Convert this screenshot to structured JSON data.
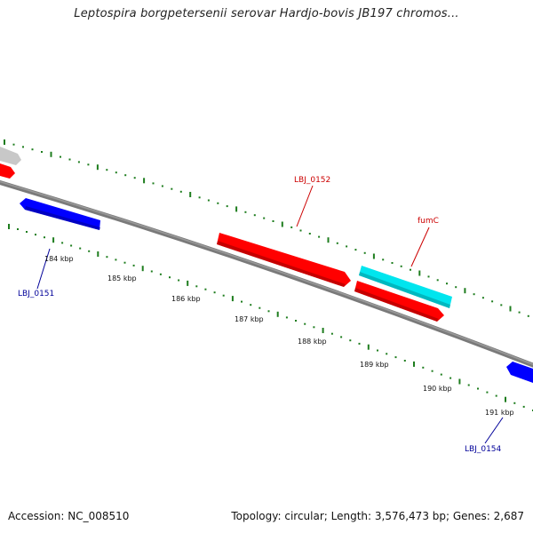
{
  "title": "Leptospira borgpetersenii serovar Hardjo-bovis JB197 chromos...",
  "footer": {
    "accession": "Accession: NC_008510",
    "summary": "Topology: circular; Length: 3,576,473 bp; Genes: 2,687"
  },
  "colors": {
    "backbone": "#7a7a7a",
    "tick": "#1e7d1e",
    "forward_gene": "#ff0000",
    "reverse_gene": "#0000ff",
    "other_gene": "#00e5ee",
    "grey_feature": "#c8c8c8",
    "forward_label": "#cc0000",
    "reverse_label": "#000099"
  },
  "ruler": {
    "labels": [
      "184 kbp",
      "185 kbp",
      "186 kbp",
      "187 kbp",
      "188 kbp",
      "189 kbp",
      "190 kbp",
      "191 kbp"
    ]
  },
  "genes": [
    {
      "label": "LBJ_0151",
      "strand": "reverse"
    },
    {
      "label": "LBJ_0152",
      "strand": "forward"
    },
    {
      "label": "fumC",
      "strand": "forward"
    },
    {
      "label": "LBJ_0154",
      "strand": "reverse"
    }
  ]
}
